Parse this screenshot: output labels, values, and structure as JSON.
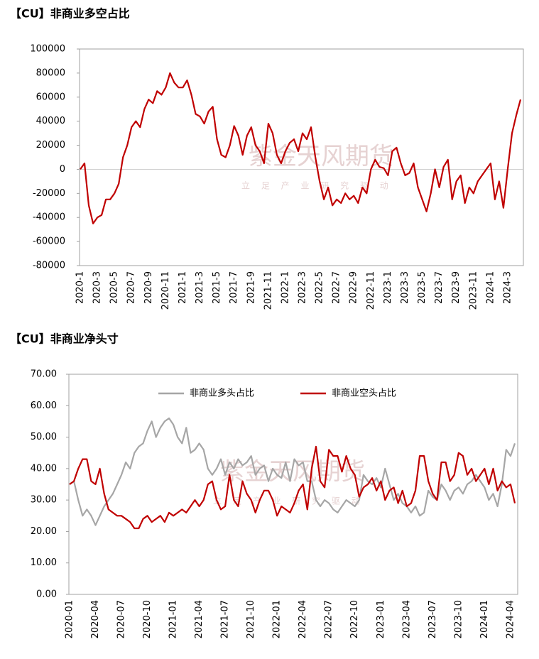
{
  "chart_data": [
    {
      "type": "line",
      "title": "【CU】非商业多空占比",
      "watermark": "紫金天风期货",
      "watermark_sub": "立 足 产 业 研 究 驱 动",
      "categories": [
        "2020-1",
        null,
        null,
        null,
        "2020-3",
        null,
        null,
        null,
        "2020-5",
        null,
        null,
        null,
        "2020-7",
        null,
        null,
        null,
        "2020-9",
        null,
        null,
        null,
        "2020-11",
        null,
        null,
        null,
        "2021-1",
        null,
        null,
        null,
        "2021-3",
        null,
        null,
        null,
        "2021-5",
        null,
        null,
        null,
        "2021-7",
        null,
        null,
        null,
        "2021-9",
        null,
        null,
        null,
        "2021-11",
        null,
        null,
        null,
        "2022-1",
        null,
        null,
        null,
        "2022-3",
        null,
        null,
        null,
        "2022-5",
        null,
        null,
        null,
        "2022-7",
        null,
        null,
        null,
        "2022-9",
        null,
        null,
        null,
        "2022-11",
        null,
        null,
        null,
        "2023-1",
        null,
        null,
        null,
        "2023-3",
        null,
        null,
        null,
        "2023-5",
        null,
        null,
        null,
        "2023-7",
        null,
        null,
        null,
        "2023-9",
        null,
        null,
        null,
        "2023-11",
        null,
        null,
        null,
        "2024-1",
        null,
        null,
        null,
        "2024-3",
        null,
        null,
        null
      ],
      "series": [
        {
          "name": "非商业多空占比",
          "color": "#c00000",
          "values": [
            0,
            5000,
            -30000,
            -45000,
            -40000,
            -38000,
            -25000,
            -25000,
            -20000,
            -12000,
            10000,
            20000,
            35000,
            40000,
            35000,
            50000,
            58000,
            55000,
            65000,
            62000,
            68000,
            80000,
            72000,
            68000,
            68000,
            74000,
            62000,
            46000,
            44000,
            38000,
            48000,
            52000,
            25000,
            12000,
            10000,
            20000,
            36000,
            28000,
            12000,
            28000,
            35000,
            20000,
            15000,
            5000,
            38000,
            30000,
            12000,
            5000,
            15000,
            22000,
            25000,
            15000,
            30000,
            25000,
            35000,
            10000,
            -10000,
            -25000,
            -15000,
            -30000,
            -25000,
            -28000,
            -20000,
            -25000,
            -22000,
            -28000,
            -15000,
            -20000,
            0,
            8000,
            2000,
            1000,
            -5000,
            15000,
            18000,
            5000,
            -5000,
            -3000,
            5000,
            -15000,
            -25000,
            -35000,
            -20000,
            0,
            -15000,
            2000,
            8000,
            -25000,
            -10000,
            -5000,
            -28000,
            -15000,
            -20000,
            -10000,
            -5000,
            0,
            5000,
            -25000,
            -10000,
            -32000,
            0,
            30000,
            45000,
            58000
          ]
        }
      ],
      "ylim": [
        -80000,
        100000
      ],
      "yticks": [
        -80000,
        -60000,
        -40000,
        -20000,
        0,
        20000,
        40000,
        60000,
        80000,
        100000
      ],
      "negative_tick_color": "#c00000",
      "zero_line": true,
      "grid": false
    },
    {
      "type": "line",
      "title": "【CU】非商业净头寸",
      "watermark": "紫金天风期货",
      "watermark_sub": "立 足 产 业 研 究 驱 动",
      "categories": [
        "2020-01",
        null,
        null,
        null,
        null,
        null,
        "2020-04",
        null,
        null,
        null,
        null,
        null,
        "2020-07",
        null,
        null,
        null,
        null,
        null,
        "2020-10",
        null,
        null,
        null,
        null,
        null,
        "2021-01",
        null,
        null,
        null,
        null,
        null,
        "2021-04",
        null,
        null,
        null,
        null,
        null,
        "2021-07",
        null,
        null,
        null,
        null,
        null,
        "2021-10",
        null,
        null,
        null,
        null,
        null,
        "2022-01",
        null,
        null,
        null,
        null,
        null,
        "2022-04",
        null,
        null,
        null,
        null,
        null,
        "2022-07",
        null,
        null,
        null,
        null,
        null,
        "2022-10",
        null,
        null,
        null,
        null,
        null,
        "2023-01",
        null,
        null,
        null,
        null,
        null,
        "2023-04",
        null,
        null,
        null,
        null,
        null,
        "2023-07",
        null,
        null,
        null,
        null,
        null,
        "2023-10",
        null,
        null,
        null,
        null,
        null,
        "2024-01",
        null,
        null,
        null,
        null,
        null,
        "2024-04",
        null
      ],
      "series": [
        {
          "name": "非商业多头占比",
          "color": "#a6a6a6",
          "values": [
            35,
            36,
            30,
            25,
            27,
            25,
            22,
            25,
            28,
            30,
            32,
            35,
            38,
            42,
            40,
            45,
            47,
            48,
            52,
            55,
            50,
            53,
            55,
            56,
            54,
            50,
            48,
            53,
            45,
            46,
            48,
            46,
            40,
            38,
            40,
            43,
            38,
            42,
            40,
            43,
            41,
            42,
            44,
            38,
            40,
            41,
            36,
            40,
            38,
            37,
            42,
            36,
            43,
            41,
            42,
            36,
            36,
            30,
            28,
            30,
            29,
            27,
            26,
            28,
            30,
            29,
            28,
            30,
            38,
            36,
            35,
            37,
            34,
            40,
            35,
            30,
            32,
            29,
            28,
            26,
            28,
            25,
            26,
            33,
            31,
            30,
            35,
            33,
            30,
            33,
            34,
            32,
            35,
            36,
            38,
            36,
            34,
            30,
            32,
            28,
            35,
            46,
            44,
            48
          ]
        },
        {
          "name": "非商业空头占比",
          "color": "#c00000",
          "values": [
            35,
            36,
            40,
            43,
            43,
            36,
            35,
            40,
            32,
            27,
            26,
            25,
            25,
            24,
            23,
            21,
            21,
            24,
            25,
            23,
            24,
            25,
            23,
            26,
            25,
            26,
            27,
            26,
            28,
            30,
            28,
            30,
            35,
            36,
            30,
            27,
            28,
            38,
            30,
            28,
            36,
            32,
            30,
            26,
            30,
            33,
            33,
            30,
            25,
            28,
            27,
            26,
            29,
            33,
            35,
            27,
            40,
            47,
            36,
            34,
            46,
            44,
            44,
            39,
            44,
            40,
            38,
            31,
            34,
            35,
            37,
            33,
            36,
            30,
            33,
            34,
            29,
            33,
            28,
            29,
            33,
            44,
            44,
            36,
            32,
            30,
            42,
            42,
            36,
            38,
            45,
            44,
            38,
            40,
            36,
            38,
            40,
            35,
            40,
            33,
            36,
            34,
            35,
            29
          ]
        }
      ],
      "ylim": [
        0,
        70
      ],
      "yticks": [
        {
          "value": 0,
          "label": "0.00"
        },
        {
          "value": 10,
          "label": "10.00"
        },
        {
          "value": 20,
          "label": "20.00"
        },
        {
          "value": 30,
          "label": "30.00"
        },
        {
          "value": 40,
          "label": "40.00"
        },
        {
          "value": 50,
          "label": "50.00"
        },
        {
          "value": 60,
          "label": "60.00"
        },
        {
          "value": 70,
          "label": "70.00"
        }
      ],
      "legend": "upper center",
      "grid": false
    }
  ]
}
